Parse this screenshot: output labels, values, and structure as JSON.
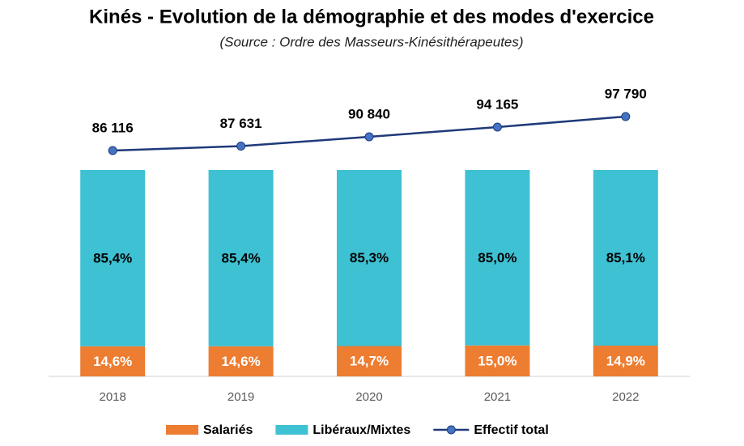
{
  "chart_data": {
    "type": "bar",
    "stacked": true,
    "title": "Kinés - Evolution de la démographie et des modes d'exercice",
    "subtitle": "(Source : Ordre des Masseurs-Kinésithérapeutes)",
    "categories": [
      "2018",
      "2019",
      "2020",
      "2021",
      "2022"
    ],
    "series": [
      {
        "name": "Salariés",
        "color": "#ed7d31",
        "values": [
          14.6,
          14.6,
          14.7,
          15.0,
          14.9
        ],
        "value_labels": [
          "14,6%",
          "14,6%",
          "14,7%",
          "15,0%",
          "14,9%"
        ],
        "label_color": "#ffffff"
      },
      {
        "name": "Libéraux/Mixtes",
        "color": "#3ec1d3",
        "values": [
          85.4,
          85.4,
          85.3,
          85.0,
          85.1
        ],
        "value_labels": [
          "85,4%",
          "85,4%",
          "85,3%",
          "85,0%",
          "85,1%"
        ],
        "label_color": "#000000"
      },
      {
        "name": "Effectif total",
        "type": "line",
        "axis": "y2",
        "color": "#1f3a7a",
        "marker_color": "#4472c4",
        "values": [
          86116,
          87631,
          90840,
          94165,
          97790
        ],
        "value_labels": [
          "86 116",
          "87 631",
          "90 840",
          "94 165",
          "97 790"
        ]
      }
    ],
    "ylim": [
      0,
      100
    ],
    "y2lim": [
      0,
      100000
    ],
    "legend": "bottom"
  }
}
